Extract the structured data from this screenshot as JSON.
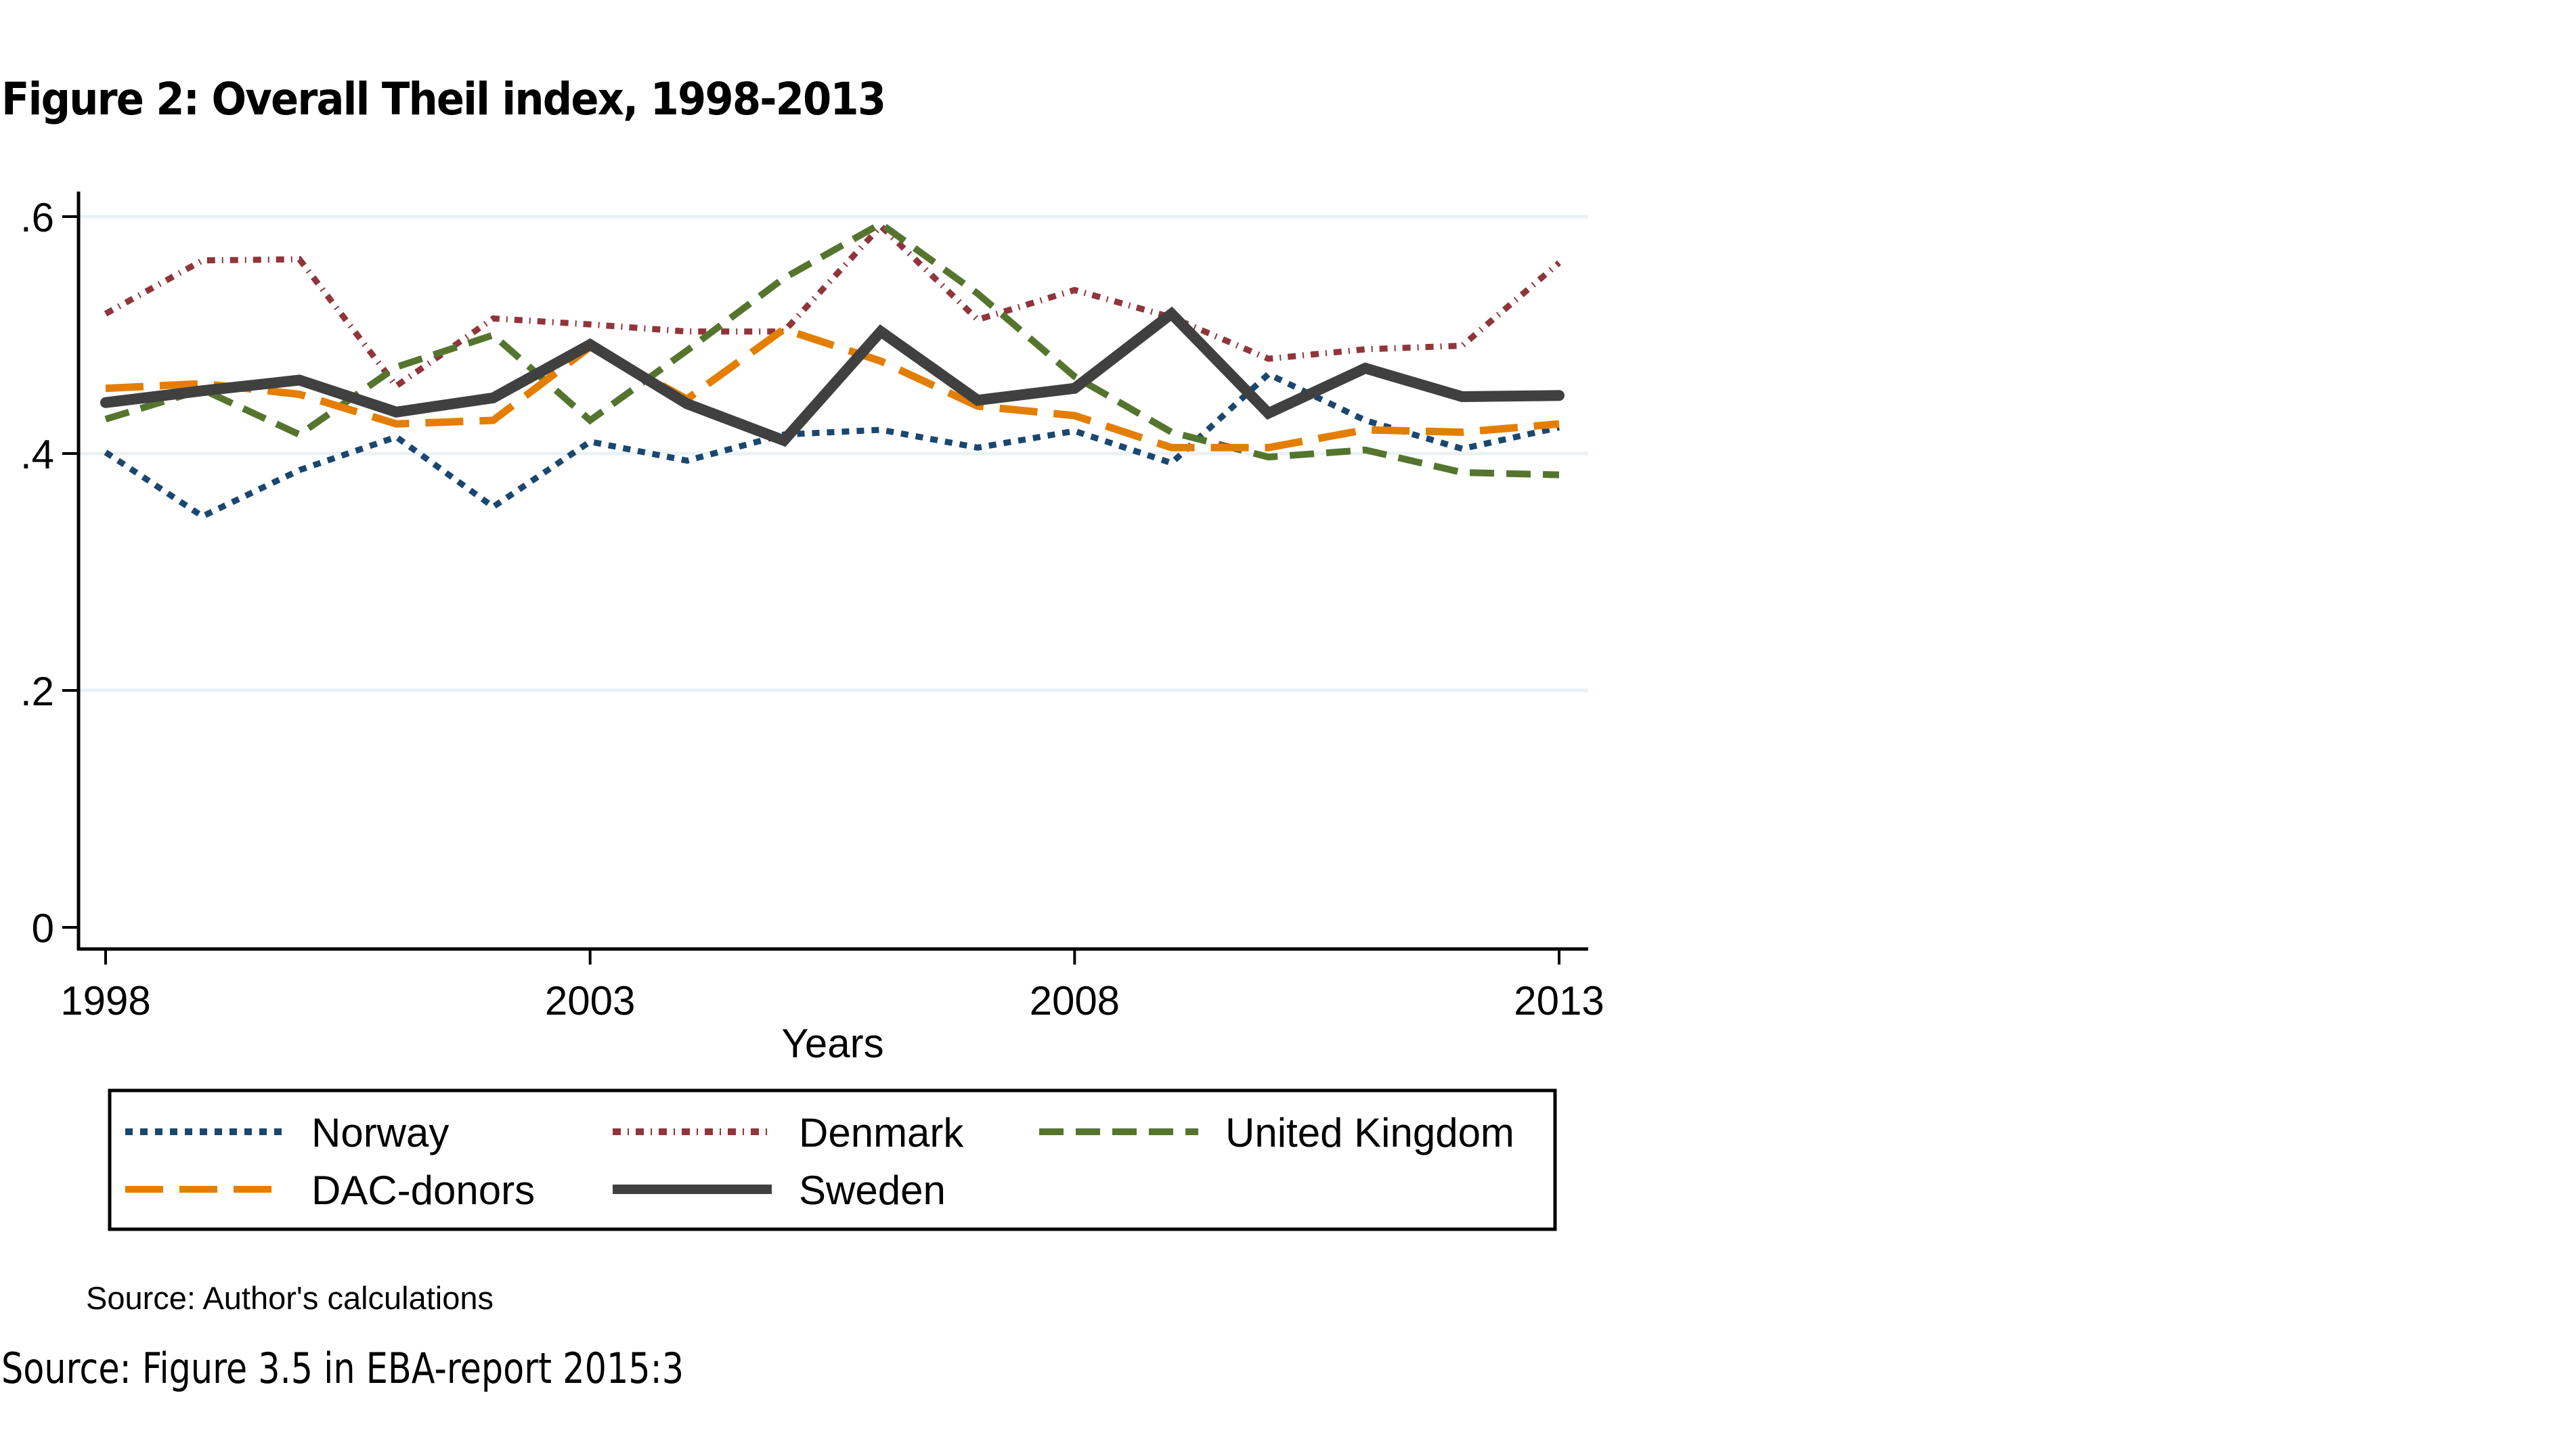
{
  "figure_title": "Figure 2: Overall Theil index, 1998-2013",
  "source_note": "Source: Author's calculations",
  "source_main": "Source: Figure 3.5 in EBA-report 2015:3",
  "chart_data": {
    "type": "line",
    "title": "Figure 2: Overall Theil index, 1998-2013",
    "xlabel": "Years",
    "ylabel": "",
    "x": [
      1998,
      1999,
      2000,
      2001,
      2002,
      2003,
      2004,
      2005,
      2006,
      2007,
      2008,
      2009,
      2010,
      2011,
      2012,
      2013
    ],
    "xlim": [
      1998,
      2013
    ],
    "ylim": [
      0,
      0.6
    ],
    "xticks": [
      1998,
      2003,
      2008,
      2013
    ],
    "xtick_labels": [
      "1998",
      "2003",
      "2008",
      "2013"
    ],
    "yticks": [
      0,
      0.2,
      0.4,
      0.6
    ],
    "ytick_labels": [
      "0",
      ".2",
      ".4",
      ".6"
    ],
    "grid": "horizontal",
    "legend_position": "bottom",
    "series": [
      {
        "name": "Norway",
        "color": "#1a476f",
        "style": "dotted",
        "values": [
          0.401,
          0.347,
          0.386,
          0.414,
          0.355,
          0.41,
          0.394,
          0.416,
          0.42,
          0.405,
          0.419,
          0.392,
          0.467,
          0.428,
          0.404,
          0.422
        ]
      },
      {
        "name": "Denmark",
        "color": "#90353b",
        "style": "dash-dot",
        "values": [
          0.518,
          0.563,
          0.564,
          0.457,
          0.514,
          0.509,
          0.503,
          0.503,
          0.592,
          0.513,
          0.538,
          0.515,
          0.48,
          0.488,
          0.491,
          0.561
        ]
      },
      {
        "name": "United Kingdom",
        "color": "#55752f",
        "style": "short-dash",
        "values": [
          0.429,
          0.454,
          0.416,
          0.473,
          0.5,
          0.428,
          0.487,
          0.548,
          0.594,
          0.535,
          0.465,
          0.418,
          0.397,
          0.403,
          0.384,
          0.382
        ]
      },
      {
        "name": "DAC-donors",
        "color": "#e37e00",
        "style": "long-dash",
        "values": [
          0.455,
          0.459,
          0.45,
          0.425,
          0.428,
          0.49,
          0.446,
          0.505,
          0.478,
          0.44,
          0.432,
          0.405,
          0.405,
          0.42,
          0.418,
          0.425
        ]
      },
      {
        "name": "Sweden",
        "color": "#404040",
        "style": "solid",
        "values": [
          0.443,
          0.453,
          0.462,
          0.435,
          0.447,
          0.492,
          0.442,
          0.411,
          0.503,
          0.445,
          0.455,
          0.518,
          0.434,
          0.472,
          0.448,
          0.449
        ]
      }
    ]
  },
  "legend": {
    "items": [
      {
        "label": "Norway"
      },
      {
        "label": "Denmark"
      },
      {
        "label": "United Kingdom"
      },
      {
        "label": "DAC-donors"
      },
      {
        "label": "Sweden"
      }
    ]
  }
}
